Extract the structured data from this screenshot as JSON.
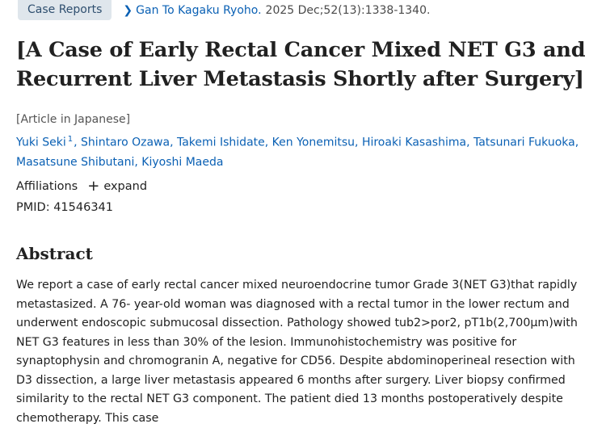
{
  "header": {
    "tag": "Case Reports",
    "journal": "Gan To Kagaku Ryoho.",
    "citation": "2025 Dec;52(13):1338-1340."
  },
  "title": "[A Case of Early Rectal Cancer Mixed NET G3 and Recurrent Liver Metastasis Shortly after Surgery]",
  "language_note": "[Article in Japanese]",
  "authors": [
    {
      "name": "Yuki Seki",
      "sup": "1"
    },
    {
      "name": "Shintaro Ozawa"
    },
    {
      "name": "Takemi Ishidate"
    },
    {
      "name": "Ken Yonemitsu"
    },
    {
      "name": "Hiroaki Kasashima"
    },
    {
      "name": "Tatsunari Fukuoka"
    },
    {
      "name": "Masatsune Shibutani"
    },
    {
      "name": "Kiyoshi Maeda"
    }
  ],
  "affiliations": {
    "label": "Affiliations",
    "expand_icon": "plus-icon",
    "expand_label": "expand"
  },
  "pmid": "PMID: 41546341",
  "abstract": {
    "heading": "Abstract",
    "text": "We report a case of early rectal cancer mixed neuroendocrine tumor Grade 3(NET G3)that rapidly metastasized. A 76- year-old woman was diagnosed with a rectal tumor in the lower rectum and underwent endoscopic submucosal dissection. Pathology showed tub2>por2, pT1b(2,700μm)with NET G3 features in less than 30% of the lesion. Immunohistochemistry was positive for synaptophysin and chromogranin A, negative for CD56. Despite abdominoperineal resection with D3 dissection, a large liver metastasis appeared 6 months after surgery. Liver biopsy confirmed similarity to the rectal NET G3 component. The patient died 13 months postoperatively despite chemotherapy. This case"
  },
  "colors": {
    "link": "#0a60b4",
    "tag_bg": "#dfe6ec"
  }
}
